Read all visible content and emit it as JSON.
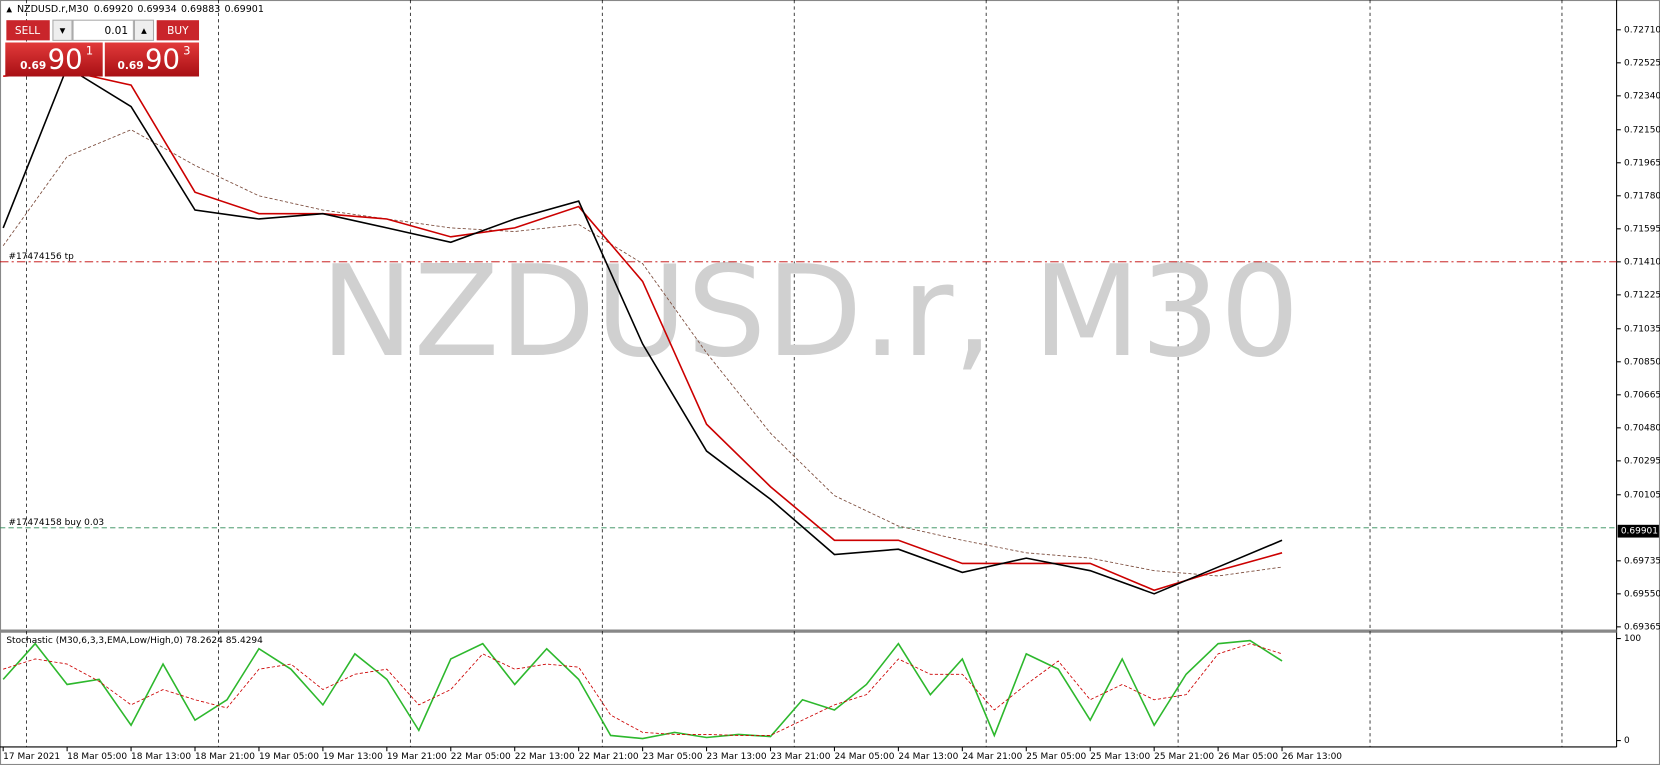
{
  "header": {
    "symbol": "NZDUSD.r,M30",
    "ohlc": [
      "0.69920",
      "0.69934",
      "0.69883",
      "0.69901"
    ]
  },
  "trade_panel": {
    "sell": "SELL",
    "buy": "BUY",
    "lot": "0.01",
    "sell_price": {
      "prefix": "0.69",
      "big": "90",
      "small": "1"
    },
    "buy_price": {
      "prefix": "0.69",
      "big": "90",
      "small": "3"
    }
  },
  "chart_data": [
    {
      "type": "line",
      "watermark": "NZDUSD.r, M30",
      "categories": [
        "17 Mar 2021",
        "18 Mar 05:00",
        "18 Mar 13:00",
        "18 Mar 21:00",
        "19 Mar 05:00",
        "19 Mar 13:00",
        "19 Mar 21:00",
        "22 Mar 05:00",
        "22 Mar 13:00",
        "22 Mar 21:00",
        "23 Mar 05:00",
        "23 Mar 13:00",
        "23 Mar 21:00",
        "24 Mar 05:00",
        "24 Mar 13:00",
        "24 Mar 21:00",
        "25 Mar 05:00",
        "25 Mar 13:00",
        "25 Mar 21:00",
        "26 Mar 05:00",
        "26 Mar 13:00"
      ],
      "series": [
        {
          "color": "#7a4a3a",
          "dashed": true,
          "values": [
            0.715,
            0.72,
            0.7215,
            0.7195,
            0.7178,
            0.717,
            0.7165,
            0.716,
            0.7158,
            0.7162,
            0.714,
            0.709,
            0.7045,
            0.701,
            0.6993,
            0.6985,
            0.6978,
            0.6975,
            0.6968,
            0.6965,
            0.697
          ]
        },
        {
          "color": "#cc0000",
          "dashed": false,
          "values": [
            0.7245,
            0.7248,
            0.724,
            0.718,
            0.7168,
            0.7168,
            0.7165,
            0.7155,
            0.716,
            0.7172,
            0.713,
            0.705,
            0.7015,
            0.6985,
            0.6985,
            0.6972,
            0.6972,
            0.6972,
            0.6957,
            0.6968,
            0.6978
          ]
        },
        {
          "color": "#000000",
          "dashed": false,
          "values": [
            0.716,
            0.725,
            0.7228,
            0.717,
            0.7165,
            0.7168,
            0.716,
            0.7152,
            0.7165,
            0.7175,
            0.7095,
            0.7035,
            0.7008,
            0.6977,
            0.698,
            0.6967,
            0.6975,
            0.6968,
            0.6955,
            0.697,
            0.6985
          ]
        }
      ],
      "ylim": [
        0.69353,
        0.72877
      ],
      "yticks": [
        {
          "value": 0.7271,
          "label": "0.72710"
        },
        0.72525,
        {
          "value": 0.7234,
          "label": "0.72340"
        },
        {
          "value": 0.7215,
          "label": "0.72150"
        },
        0.71965,
        {
          "value": 0.7178,
          "label": "0.71780"
        },
        0.71595,
        {
          "value": 0.7141,
          "label": "0.71410"
        },
        0.71225,
        0.71035,
        {
          "value": 0.7085,
          "label": "0.70850"
        },
        0.70665,
        {
          "value": 0.7048,
          "label": "0.70480"
        },
        0.70295,
        0.70105,
        0.69735,
        {
          "value": 0.6955,
          "label": "0.69550"
        },
        0.69365
      ],
      "annotations": [
        {
          "text": "#17474156 tp",
          "value": 0.7141,
          "color": "#c00000"
        },
        {
          "text": "#17474158 buy 0.03",
          "value": 0.6992,
          "color": "#2e8b57"
        }
      ],
      "price_label": 0.69901
    },
    {
      "type": "line",
      "title": "Stochastic (M30,6,3,3,EMA,Low/High,0) 78.2624 85.4294",
      "series": [
        {
          "color": "#2db82d",
          "dashed": false,
          "values": [
            60,
            95,
            55,
            60,
            15,
            75,
            20,
            40,
            90,
            70,
            35,
            85,
            60,
            10,
            80,
            95,
            55,
            90,
            60,
            5,
            2,
            8,
            3,
            6,
            4,
            40,
            30,
            55,
            95,
            45,
            80,
            5,
            85,
            70,
            20,
            80,
            15,
            65,
            95,
            98,
            78
          ]
        },
        {
          "color": "#cc0000",
          "dashed": true,
          "values": [
            70,
            80,
            75,
            58,
            35,
            50,
            40,
            32,
            70,
            75,
            50,
            65,
            70,
            35,
            50,
            85,
            70,
            75,
            72,
            25,
            8,
            6,
            6,
            5,
            5,
            20,
            35,
            45,
            80,
            65,
            65,
            30,
            55,
            78,
            40,
            55,
            40,
            45,
            85,
            95,
            85
          ]
        }
      ],
      "ylim": [
        0,
        100
      ],
      "yticks": [
        100,
        0
      ]
    }
  ]
}
